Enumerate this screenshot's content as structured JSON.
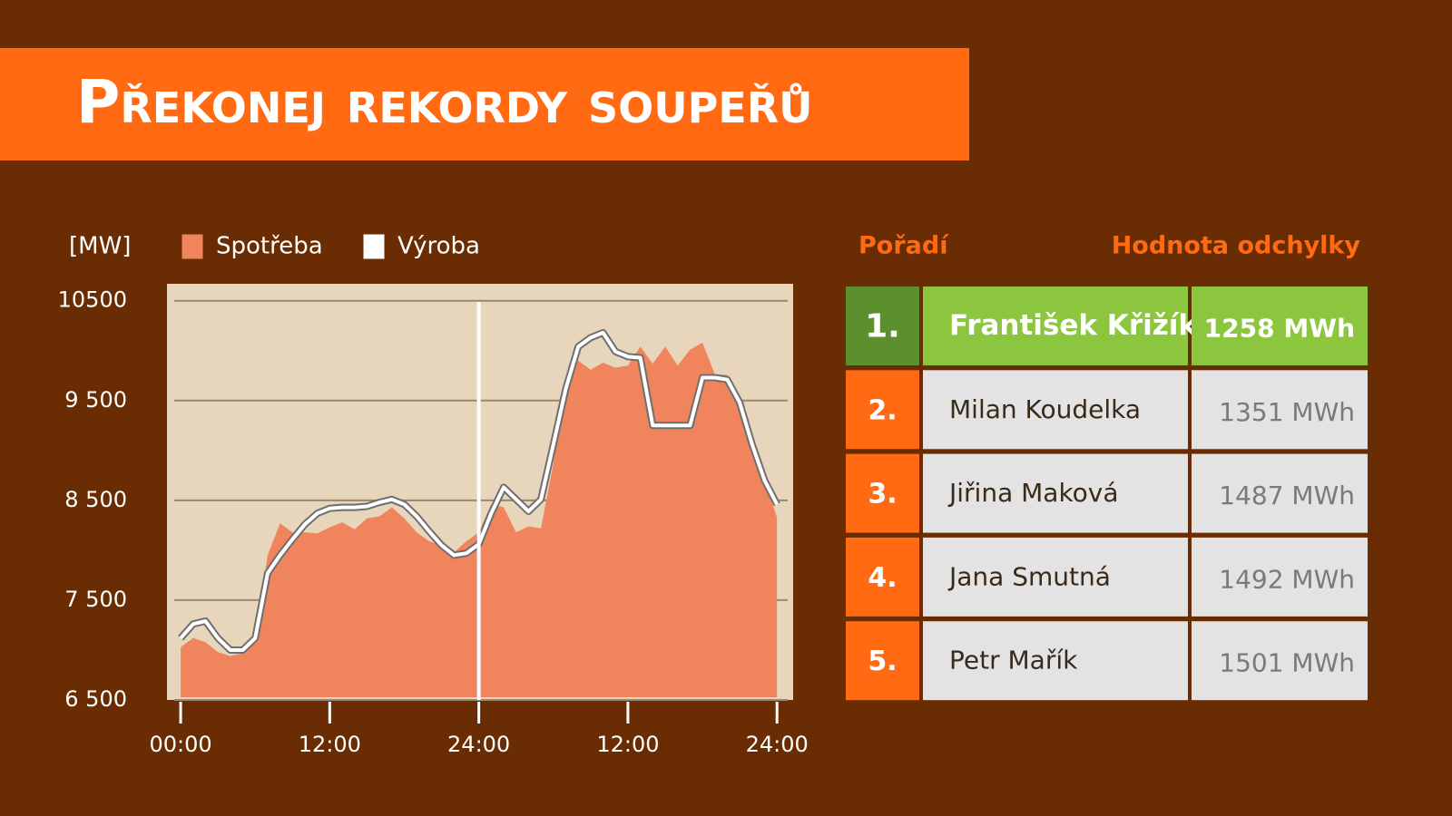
{
  "header": {
    "title": "Překonej rekordy soupeřů"
  },
  "chart_data": {
    "type": "area-line",
    "y_label": "[MW]",
    "x": [
      0,
      1,
      2,
      3,
      4,
      5,
      6,
      7,
      8,
      9,
      10,
      11,
      12,
      13,
      14,
      15,
      16,
      17,
      18,
      19,
      20,
      21,
      22,
      23,
      24,
      25,
      26,
      27,
      28,
      29,
      30,
      31,
      32,
      33,
      34,
      35,
      36,
      37,
      38,
      39,
      40,
      41,
      42,
      43,
      44,
      45,
      46,
      47,
      48
    ],
    "xlim": [
      -1.1,
      49.3
    ],
    "xticks": [
      {
        "value": 0,
        "label": "00:00"
      },
      {
        "value": 12,
        "label": "12:00"
      },
      {
        "value": 24,
        "label": "24:00"
      },
      {
        "value": 36,
        "label": "12:00"
      },
      {
        "value": 48,
        "label": "24:00"
      }
    ],
    "ylim": [
      6500,
      10670
    ],
    "yticks": [
      {
        "value": 10500,
        "label": "10500"
      },
      {
        "value": 9500,
        "label": "9 500"
      },
      {
        "value": 8500,
        "label": "8 500"
      },
      {
        "value": 7500,
        "label": "7 500"
      },
      {
        "value": 6500,
        "label": "6 500"
      }
    ],
    "grid": true,
    "series": [
      {
        "name": "Spotřeba",
        "color": "#f0845c",
        "kind": "area",
        "values": [
          7030,
          7120,
          7080,
          6980,
          6940,
          6970,
          7080,
          7950,
          8270,
          8180,
          8180,
          8170,
          8230,
          8280,
          8210,
          8320,
          8340,
          8430,
          8320,
          8180,
          8090,
          8050,
          7980,
          8090,
          8180,
          8460,
          8430,
          8180,
          8240,
          8220,
          8870,
          9710,
          9900,
          9810,
          9880,
          9830,
          9850,
          10040,
          9870,
          10040,
          9850,
          10010,
          10080,
          9760,
          9760,
          9440,
          8980,
          8700,
          8330
        ]
      },
      {
        "name": "Výroba",
        "color": "#ffffff",
        "kind": "line",
        "values": [
          7120,
          7260,
          7290,
          7120,
          7000,
          7000,
          7120,
          7770,
          7950,
          8110,
          8260,
          8370,
          8420,
          8430,
          8430,
          8440,
          8480,
          8510,
          8460,
          8340,
          8190,
          8050,
          7950,
          7970,
          8060,
          8370,
          8630,
          8510,
          8390,
          8510,
          9060,
          9620,
          10040,
          10130,
          10180,
          9990,
          9940,
          9930,
          9250,
          9250,
          9250,
          9250,
          9730,
          9730,
          9710,
          9480,
          9060,
          8700,
          8460
        ]
      }
    ]
  },
  "table": {
    "headers": [
      "Pořadí",
      "Hodnota odchylky"
    ],
    "rows": [
      [
        "1.",
        "František Křižík",
        "1258 MWh"
      ],
      [
        "2.",
        "Milan Koudelka",
        "1351 MWh"
      ],
      [
        "3.",
        "Jiřina Maková",
        "1487 MWh"
      ],
      [
        "4.",
        "Jana Smutná",
        "1492 MWh"
      ],
      [
        "5.",
        "Petr Mařík",
        "1501 MWh"
      ]
    ]
  }
}
